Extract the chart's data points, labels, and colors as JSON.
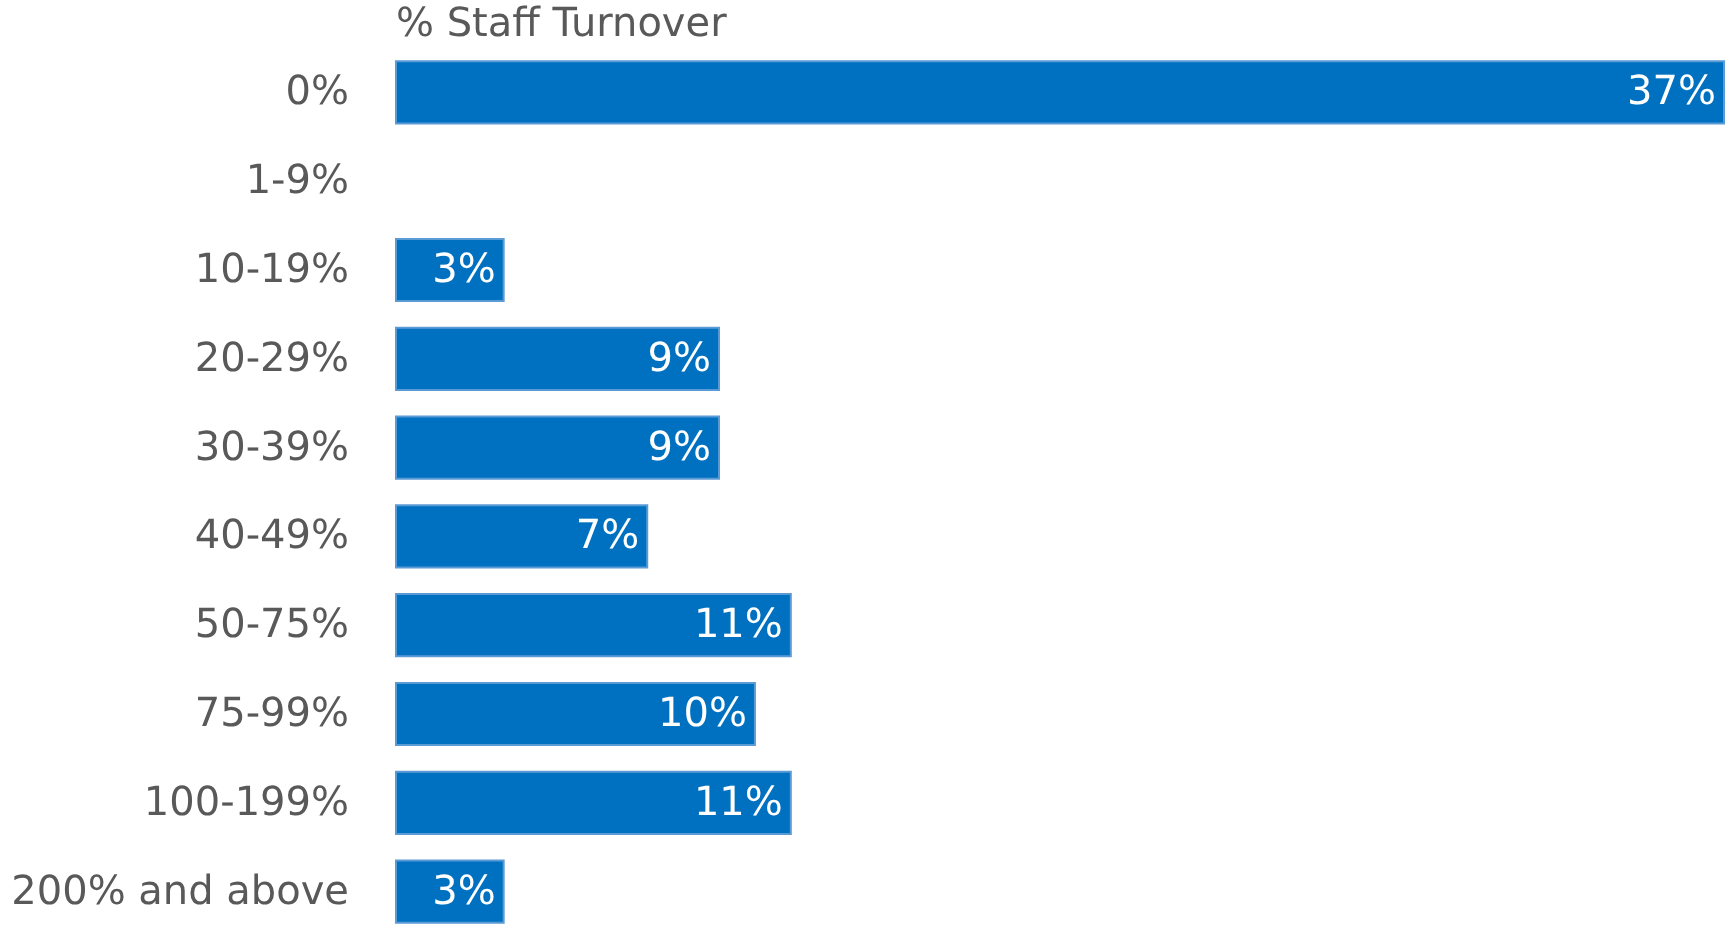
{
  "chart_data": {
    "type": "bar",
    "orientation": "horizontal",
    "title": "% Staff Turnover",
    "categories": [
      "0%",
      "1-9%",
      "10-19%",
      "20-29%",
      "30-39%",
      "40-49%",
      "50-75%",
      "75-99%",
      "100-199%",
      "200% and above"
    ],
    "values": [
      37,
      null,
      3,
      9,
      9,
      7,
      11,
      10,
      11,
      3
    ],
    "value_labels": [
      "37%",
      null,
      "3%",
      "9%",
      "9%",
      "7%",
      "11%",
      "10%",
      "11%",
      "3%"
    ],
    "color": "#0070c0",
    "grid": false
  }
}
